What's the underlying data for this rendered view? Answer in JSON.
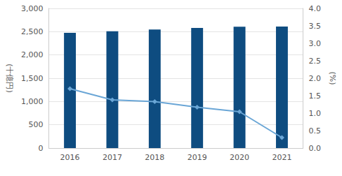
{
  "chart_data": {
    "type": "bar",
    "categories": [
      "2016",
      "2017",
      "2018",
      "2019",
      "2020",
      "2021"
    ],
    "ylabel": "(十億円)",
    "y2label": "(%)",
    "ylim": [
      0,
      3000
    ],
    "yticks": [
      0,
      500,
      {
        "value": 1000,
        "label": "1,000"
      },
      {
        "value": 1500,
        "label": "1,500"
      },
      {
        "value": 2000,
        "label": "2,000"
      },
      {
        "value": 2500,
        "label": "2,500"
      },
      {
        "value": 3000,
        "label": "3,000"
      }
    ],
    "y2lim": [
      0,
      4
    ],
    "y2ticks": [
      {
        "value": 0,
        "label": "0.0"
      },
      0.5,
      {
        "value": 1,
        "label": "1.0"
      },
      1.5,
      {
        "value": 2,
        "label": "2.0"
      },
      2.5,
      {
        "value": 3,
        "label": "3.0"
      },
      3.5,
      {
        "value": 4,
        "label": "4.0"
      }
    ],
    "grid": true,
    "series": [
      {
        "type": "bar",
        "color": "#0e4c80",
        "values": [
          2475,
          2510,
          2545,
          2580,
          2605,
          2610
        ]
      },
      {
        "type": "line",
        "axis": "y2",
        "color": "#6aa6d6",
        "marker": "diamond",
        "values": [
          1.7,
          1.38,
          1.33,
          1.17,
          1.04,
          0.3
        ]
      }
    ]
  }
}
